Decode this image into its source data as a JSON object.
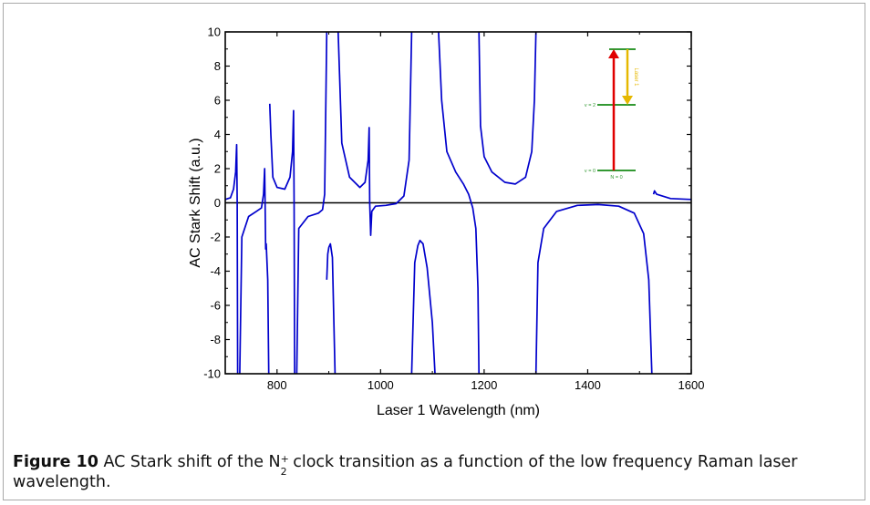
{
  "caption": {
    "label": "Figure 10",
    "text_before": "AC Stark shift of the N",
    "species_sub": "2",
    "species_sup": "+",
    "text_after": "clock transition as a function of the low frequency Raman laser wavelength."
  },
  "chart_data": {
    "type": "line",
    "xlabel": "Laser 1 Wavelength (nm)",
    "ylabel": "AC Stark Shift (a.u.)",
    "xlim": [
      700,
      1600
    ],
    "ylim": [
      -10,
      10
    ],
    "xticks": [
      800,
      1000,
      1200,
      1400,
      1600
    ],
    "yticks": [
      -10,
      -8,
      -6,
      -4,
      -2,
      0,
      2,
      4,
      6,
      8,
      10
    ],
    "grid": false,
    "legend": "none",
    "zero_line": true,
    "series": [
      {
        "color": "#0000cc",
        "segments": [
          [
            [
              700,
              0.2
            ],
            [
              710,
              0.3
            ],
            [
              716,
              0.8
            ],
            [
              720,
              1.8
            ],
            [
              722,
              3.4
            ],
            [
              723,
              0
            ],
            [
              724,
              -10
            ]
          ],
          [
            [
              728,
              -10
            ],
            [
              732,
              -2
            ],
            [
              745,
              -0.8
            ],
            [
              760,
              -0.5
            ],
            [
              770,
              -0.3
            ],
            [
              774,
              0.5
            ],
            [
              776,
              2.0
            ],
            [
              777,
              0
            ],
            [
              778,
              -2.7
            ],
            [
              779,
              -2.4
            ],
            [
              780,
              -3.0
            ],
            [
              782,
              -4.5
            ],
            [
              784,
              -10
            ]
          ],
          [
            [
              786,
              5.8
            ],
            [
              788,
              4.0
            ],
            [
              792,
              1.5
            ],
            [
              800,
              0.9
            ],
            [
              815,
              0.8
            ],
            [
              825,
              1.5
            ],
            [
              830,
              3.0
            ],
            [
              832,
              5.4
            ],
            [
              833,
              0
            ],
            [
              834,
              -10
            ]
          ],
          [
            [
              838,
              -10
            ],
            [
              842,
              -1.5
            ],
            [
              860,
              -0.8
            ],
            [
              880,
              -0.6
            ],
            [
              888,
              -0.4
            ],
            [
              892,
              0.5
            ],
            [
              896,
              10
            ]
          ],
          [
            [
              896,
              -4.5
            ],
            [
              898,
              -3.0
            ],
            [
              900,
              -2.6
            ],
            [
              903,
              -2.4
            ],
            [
              907,
              -3.2
            ],
            [
              912,
              -10
            ]
          ],
          [
            [
              918,
              10
            ],
            [
              925,
              3.5
            ],
            [
              940,
              1.5
            ],
            [
              960,
              0.9
            ],
            [
              970,
              1.2
            ],
            [
              976,
              2.5
            ],
            [
              978,
              4.4
            ],
            [
              979,
              0
            ],
            [
              980,
              -1.0
            ],
            [
              981,
              -1.9
            ],
            [
              983,
              -0.5
            ],
            [
              990,
              -0.2
            ],
            [
              1010,
              -0.15
            ],
            [
              1030,
              -0.05
            ],
            [
              1045,
              0.4
            ],
            [
              1055,
              2.5
            ],
            [
              1060,
              10
            ]
          ],
          [
            [
              1060,
              -10
            ],
            [
              1066,
              -3.5
            ],
            [
              1072,
              -2.5
            ],
            [
              1076,
              -2.2
            ],
            [
              1082,
              -2.4
            ],
            [
              1090,
              -3.8
            ],
            [
              1100,
              -7
            ],
            [
              1105,
              -10
            ]
          ],
          [
            [
              1112,
              10
            ],
            [
              1118,
              6.0
            ],
            [
              1128,
              3.0
            ],
            [
              1145,
              1.8
            ],
            [
              1160,
              1.1
            ],
            [
              1170,
              0.5
            ],
            [
              1178,
              -0.3
            ],
            [
              1184,
              -1.5
            ],
            [
              1188,
              -5
            ],
            [
              1190,
              -10
            ]
          ],
          [
            [
              1190,
              10
            ],
            [
              1193,
              4.5
            ],
            [
              1200,
              2.7
            ],
            [
              1215,
              1.8
            ],
            [
              1240,
              1.2
            ],
            [
              1260,
              1.1
            ],
            [
              1280,
              1.5
            ],
            [
              1292,
              3.0
            ],
            [
              1297,
              6.0
            ],
            [
              1300,
              10
            ]
          ],
          [
            [
              1300,
              -10
            ],
            [
              1304,
              -3.5
            ],
            [
              1315,
              -1.5
            ],
            [
              1340,
              -0.5
            ],
            [
              1380,
              -0.15
            ],
            [
              1420,
              -0.1
            ],
            [
              1460,
              -0.2
            ],
            [
              1490,
              -0.6
            ],
            [
              1508,
              -1.8
            ],
            [
              1518,
              -4.5
            ],
            [
              1524,
              -10
            ]
          ],
          [
            [
              1527,
              0.5
            ],
            [
              1529,
              0.7
            ],
            [
              1533,
              0.5
            ],
            [
              1560,
              0.25
            ],
            [
              1600,
              0.2
            ]
          ]
        ]
      }
    ],
    "inset": {
      "levels": [
        {
          "label": "v = 0",
          "sublabel": "N = 0",
          "color": "#339933"
        },
        {
          "label": "v = 2",
          "color": "#339933"
        }
      ],
      "arrows": [
        {
          "color": "#e00000",
          "direction": "up"
        },
        {
          "label": "Laser 1",
          "color": "#e6b800",
          "direction": "down"
        }
      ]
    }
  }
}
